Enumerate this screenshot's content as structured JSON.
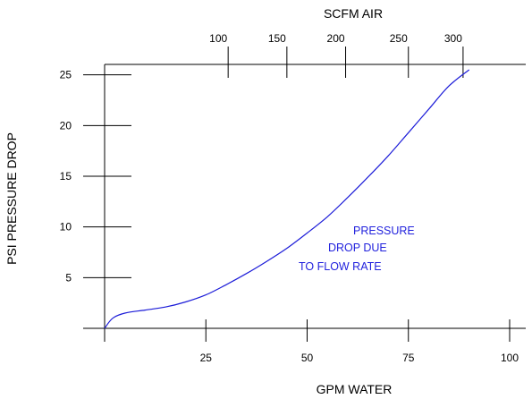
{
  "chart_data": {
    "type": "line",
    "title": "",
    "top_axis_label": "SCFM AIR",
    "xlabel": "GPM  WATER",
    "ylabel": "PSI PRESSURE DROP",
    "xlim": [
      0,
      100
    ],
    "ylim": [
      0,
      30
    ],
    "x_ticks": [
      "25",
      "50",
      "75",
      "100"
    ],
    "y_ticks": [
      "5",
      "10",
      "15",
      "20",
      "25"
    ],
    "top_ticks": [
      {
        "label": "100",
        "gpm": 30.5
      },
      {
        "label": "150",
        "gpm": 45
      },
      {
        "label": "200",
        "gpm": 59.5
      },
      {
        "label": "250",
        "gpm": 75
      },
      {
        "label": "300",
        "gpm": 88.5
      }
    ],
    "grid": false,
    "curve_color": "#1c1cd8",
    "series": [
      {
        "x": [
          0,
          2,
          5,
          10,
          15,
          20,
          25,
          30,
          35,
          40,
          45,
          50,
          55,
          60,
          65,
          70,
          75,
          80,
          85,
          90
        ],
        "y": [
          0,
          1.0,
          1.5,
          1.8,
          2.1,
          2.6,
          3.3,
          4.3,
          5.4,
          6.6,
          7.9,
          9.4,
          11.0,
          12.9,
          14.9,
          17.0,
          19.3,
          21.6,
          23.9,
          25.5
        ]
      }
    ],
    "annotation": [
      "PRESSURE",
      "DROP DUE",
      "TO FLOW RATE"
    ]
  }
}
